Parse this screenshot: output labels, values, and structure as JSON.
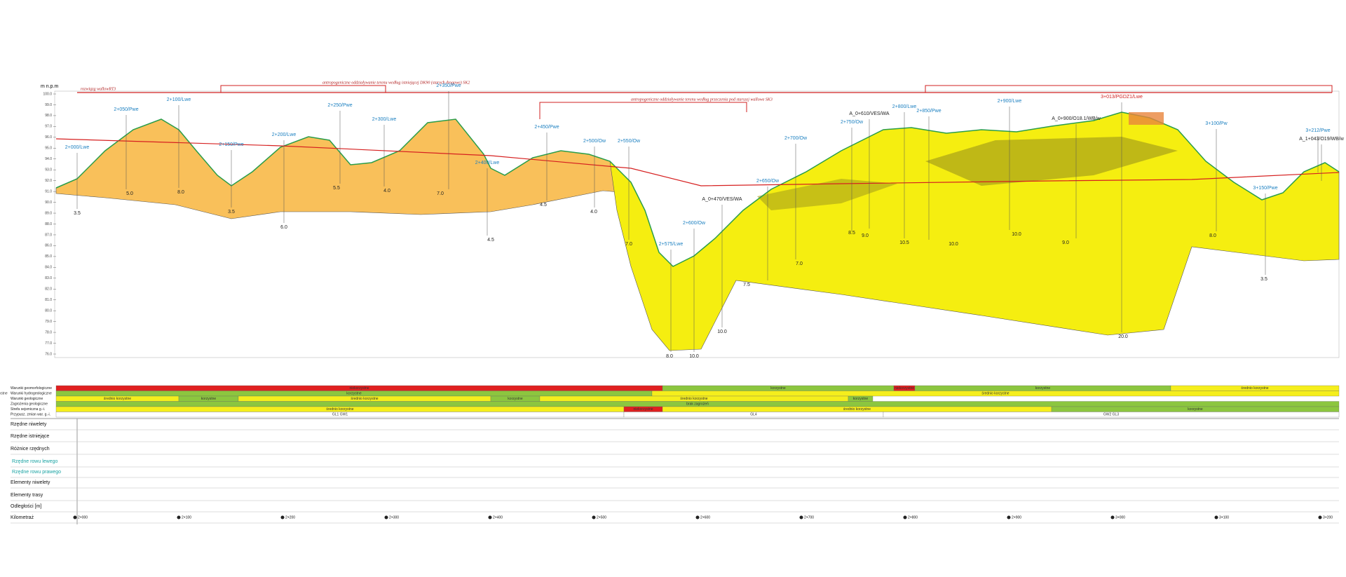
{
  "axis_label": "m n.p.m",
  "yticks": [
    "100.0",
    "99.0",
    "98.0",
    "97.0",
    "96.0",
    "95.0",
    "94.0",
    "93.0",
    "92.0",
    "91.0",
    "90.0",
    "89.0",
    "88.0",
    "87.0",
    "86.0",
    "85.0",
    "84.0",
    "83.0",
    "82.0",
    "81.0",
    "80.0",
    "79.0",
    "78.0",
    "77.0",
    "76.0"
  ],
  "notes": [
    "rozwiązg wallowRT3",
    "antropogeniczne oddziaływanie terenu według istniejącej DK90 (starych drogowe) SK2",
    "antropogeniczne oddziaływanie terenu według przeczenia pod starszej wallowe SK3"
  ],
  "boreholes": [
    {
      "label": "2+000/Lwe",
      "depth": "3.5"
    },
    {
      "label": "2+050/Pwe",
      "depth": "5.0"
    },
    {
      "label": "2+100/Lwe",
      "depth": "8.0"
    },
    {
      "label": "2+150/Pwe",
      "depth": "3.5"
    },
    {
      "label": "2+200/Lwe",
      "depth": "6.0"
    },
    {
      "label": "2+250/Pwe",
      "depth": "5.5"
    },
    {
      "label": "2+300/Lwe",
      "depth": "4.0"
    },
    {
      "label": "2+350/Pwe",
      "depth": "7.0"
    },
    {
      "label": "2+400/Lwe",
      "depth": "4.5"
    },
    {
      "label": "2+450/Pwe",
      "depth": "4.5"
    },
    {
      "label": "2+500/Ow",
      "depth": "4.0"
    },
    {
      "label": "2+550/Ow",
      "depth": "7.0"
    },
    {
      "label": "2+575/Lwe",
      "depth": "8.0"
    },
    {
      "label": "2+600/Ow",
      "depth": "10.0"
    },
    {
      "label": "A_0+470/VES/WA",
      "depth": "10.0"
    },
    {
      "label": "2+650/Ow",
      "depth": "7.5"
    },
    {
      "label": "2+700/Ow",
      "depth": "7.0"
    },
    {
      "label": "A_0+610/VES/WA",
      "depth": "8.5"
    },
    {
      "label": "2+750/Ow",
      "depth": "9.0"
    },
    {
      "label": "2+800/Lwe",
      "depth": "10.5"
    },
    {
      "label": "2+850/Pwe",
      "depth": "10.0"
    },
    {
      "label": "2+900/Lwe",
      "depth": "10.0"
    },
    {
      "label": "A_0+900/O18.1/WB/w",
      "depth": "9.0"
    },
    {
      "label": "3+013/PGDZ1/Lwe",
      "depth": "20.0"
    },
    {
      "label": "3+100/Pw",
      "depth": "8.0"
    },
    {
      "label": "3+150/Pwe",
      "depth": "3.5"
    },
    {
      "label": "3+212/Pwe"
    },
    {
      "label": "A_1+043/O19/WB/w"
    }
  ],
  "bands": [
    {
      "label": "Warunki geomorfologiczne",
      "segments": [
        {
          "text": "niekorzystne",
          "color": "#e02020"
        },
        {
          "text": "korzystne",
          "color": "#8cc63f"
        },
        {
          "text": "niekorzystne",
          "color": "#e02020"
        },
        {
          "text": "korzystne",
          "color": "#8cc63f"
        },
        {
          "text": "średnio korzystne",
          "color": "#f5ee1c"
        }
      ]
    },
    {
      "label": "Warunki hydrogeologiczne",
      "segments": [
        {
          "text": "korzystne",
          "color": "#8cc63f"
        },
        {
          "text": "średnio korzystne",
          "color": "#f5ee1c"
        },
        {
          "text": "korzystne",
          "color": "#8cc63f"
        }
      ]
    },
    {
      "label": "Warunki geologiczne",
      "segments": [
        {
          "text": "średnio korzystne",
          "color": "#f5ee1c"
        },
        {
          "text": "korzystne",
          "color": "#8cc63f"
        },
        {
          "text": "średnio korzystne",
          "color": "#f5ee1c"
        },
        {
          "text": "korzystne",
          "color": "#8cc63f"
        },
        {
          "text": "średnio korzystne",
          "color": "#f5ee1c"
        },
        {
          "text": "korzystne",
          "color": "#8cc63f"
        }
      ]
    },
    {
      "label": "Zagrożenia geologiczne",
      "segments": [
        {
          "text": "brak zagrożeń",
          "color": "#8cc63f"
        }
      ]
    },
    {
      "label": "Strefa sejsmiczna g.-i.",
      "segments": [
        {
          "text": "średnio korzystne",
          "color": "#f5ee1c"
        },
        {
          "text": "niekorzystne",
          "color": "#e02020"
        },
        {
          "text": "średnio korzystne",
          "color": "#f5ee1c"
        },
        {
          "text": "korzystne",
          "color": "#8cc63f"
        }
      ]
    },
    {
      "label": "Przypusz. zmian war. g.-i.",
      "segments": [
        {
          "text": "GL1 GW1",
          "color": "#ffffff"
        },
        {
          "text": "GL4",
          "color": "#ffffff"
        },
        {
          "text": "GW2 GL3",
          "color": "#ffffff"
        }
      ]
    }
  ],
  "rows": [
    "Rzędne niwelety",
    "Rzędne istniejące",
    "Różnice rzędnych",
    "Rzędne rowu lewego",
    "Rzędne rowu prawego",
    "Elementy niwelety",
    "Elementy trasy",
    "Odległości [m]",
    "Kilometraż"
  ],
  "km": [
    "2+000",
    "2+100",
    "2+200",
    "2+300",
    "2+400",
    "2+500",
    "2+600",
    "2+700",
    "2+800",
    "2+900",
    "3+000",
    "3+100",
    "3+200"
  ]
}
